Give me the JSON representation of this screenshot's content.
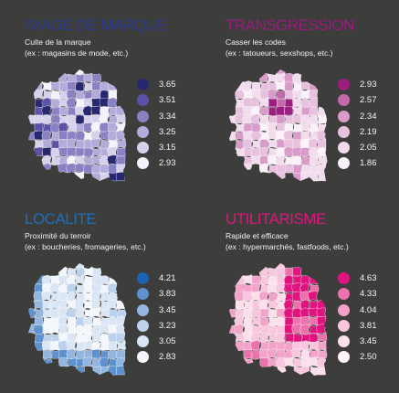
{
  "panels": [
    {
      "title": "IMAGE DE MARQUE",
      "subtitle": "Culte de la marque",
      "example": "(ex : magasins de mode, etc.)",
      "title_color": "#2b3a8f",
      "legend": [
        {
          "label": "3.65",
          "color": "#27286e"
        },
        {
          "label": "3.51",
          "color": "#5b52a8"
        },
        {
          "label": "3.34",
          "color": "#8a80c4"
        },
        {
          "label": "3.25",
          "color": "#b3abd9"
        },
        {
          "label": "3.15",
          "color": "#d7d2ec"
        },
        {
          "label": "2.93",
          "color": "#f4f2fa"
        }
      ]
    },
    {
      "title": "TRANSGRESSION",
      "subtitle": "Casser les codes",
      "example": "(ex : tatoueurs, sexshops, etc.)",
      "title_color": "#9c1a7e",
      "legend": [
        {
          "label": "2.93",
          "color": "#9a1f7f"
        },
        {
          "label": "2.57",
          "color": "#c26aa9"
        },
        {
          "label": "2.34",
          "color": "#d99bc9"
        },
        {
          "label": "2.19",
          "color": "#e8c1df"
        },
        {
          "label": "2.05",
          "color": "#f2dced"
        },
        {
          "label": "1.86",
          "color": "#fbf2f9"
        }
      ]
    },
    {
      "title": "LOCALITE",
      "subtitle": "Proximité du terroir",
      "example": "(ex : boucheries, fromageries, etc.)",
      "title_color": "#1d6fb8",
      "legend": [
        {
          "label": "4.21",
          "color": "#1c64b0"
        },
        {
          "label": "3.83",
          "color": "#5d92cf"
        },
        {
          "label": "3.45",
          "color": "#93b6e0"
        },
        {
          "label": "3.23",
          "color": "#bcd2ec"
        },
        {
          "label": "3.05",
          "color": "#dbe6f5"
        },
        {
          "label": "2.83",
          "color": "#f3f7fc"
        }
      ]
    },
    {
      "title": "UTILITARISME",
      "subtitle": "Rapide et efficace",
      "example": "(ex : hypermarchés, fastfoods, etc.)",
      "title_color": "#e2137f",
      "legend": [
        {
          "label": "4.63",
          "color": "#e0137f"
        },
        {
          "label": "4.33",
          "color": "#ec71ad"
        },
        {
          "label": "4.04",
          "color": "#f3a2c9"
        },
        {
          "label": "3.81",
          "color": "#f8c6de"
        },
        {
          "label": "3.45",
          "color": "#fbe0ec"
        },
        {
          "label": "2.50",
          "color": "#fff5f9"
        }
      ]
    }
  ]
}
